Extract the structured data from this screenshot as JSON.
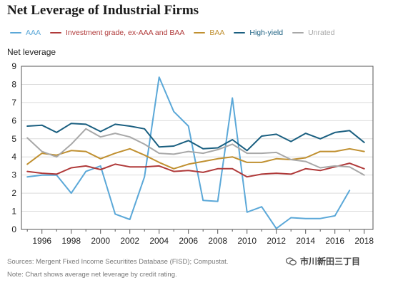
{
  "title": "Net Leverage of Industrial Firms",
  "footer": {
    "source": "Sources: Mergent Fixed Income Securitites Database (FISD); Compustat.",
    "note": "Note: Chart shows average net leverage by credit rating."
  },
  "watermark": {
    "text": "市川新田三丁目",
    "icon": "chat-bubbles-icon"
  },
  "chart_data": {
    "type": "line",
    "title": "Net Leverage of Industrial Firms",
    "ylabel": "Net leverage",
    "xlabel": "",
    "xlim": [
      1994.6,
      2018.6
    ],
    "ylim": [
      0,
      9
    ],
    "yticks": [
      0,
      1,
      2,
      3,
      4,
      5,
      6,
      7,
      8,
      9
    ],
    "xticks": [
      1996,
      1998,
      2000,
      2002,
      2004,
      2006,
      2008,
      2010,
      2012,
      2014,
      2016,
      2018
    ],
    "grid": "horizontal",
    "legend_position": "top",
    "x": [
      1995,
      1996,
      1997,
      1998,
      1999,
      2000,
      2001,
      2002,
      2003,
      2004,
      2005,
      2006,
      2007,
      2008,
      2009,
      2010,
      2011,
      2012,
      2013,
      2014,
      2015,
      2016,
      2017,
      2018
    ],
    "series": [
      {
        "name": "AAA",
        "color": "#5ba8d8",
        "values": [
          2.9,
          3.0,
          3.0,
          2.0,
          3.2,
          3.5,
          0.85,
          0.55,
          2.9,
          8.4,
          6.5,
          5.7,
          1.6,
          1.55,
          7.25,
          0.95,
          1.25,
          0.05,
          0.65,
          0.6,
          0.6,
          0.75,
          2.15,
          null
        ]
      },
      {
        "name": "Investment grade, ex-AAA and BAA",
        "color": "#b03a3a",
        "values": [
          3.2,
          3.1,
          3.05,
          3.4,
          3.5,
          3.3,
          3.6,
          3.45,
          3.45,
          3.5,
          3.2,
          3.25,
          3.15,
          3.35,
          3.35,
          2.9,
          3.05,
          3.1,
          3.05,
          3.35,
          3.25,
          3.45,
          3.65,
          3.35
        ]
      },
      {
        "name": "BAA",
        "color": "#c09030",
        "values": [
          3.6,
          4.2,
          4.1,
          4.35,
          4.3,
          3.9,
          4.2,
          4.45,
          4.1,
          3.7,
          3.35,
          3.6,
          3.75,
          3.9,
          4.0,
          3.7,
          3.7,
          3.9,
          3.85,
          3.95,
          4.3,
          4.3,
          4.45,
          4.3
        ]
      },
      {
        "name": "High-yield",
        "color": "#1a5f80",
        "values": [
          5.7,
          5.75,
          5.35,
          5.85,
          5.8,
          5.4,
          5.8,
          5.7,
          5.55,
          4.55,
          4.6,
          4.9,
          4.45,
          4.5,
          4.95,
          4.35,
          5.15,
          5.25,
          4.85,
          5.3,
          5.0,
          5.35,
          5.45,
          4.8
        ]
      },
      {
        "name": "Unrated",
        "color": "#a8a8a8",
        "values": [
          5.05,
          4.3,
          4.0,
          4.7,
          5.55,
          5.1,
          5.3,
          5.1,
          4.7,
          4.2,
          4.15,
          4.3,
          4.2,
          4.4,
          4.7,
          4.2,
          4.2,
          4.25,
          3.85,
          3.75,
          3.4,
          3.5,
          3.45,
          3.0
        ]
      }
    ]
  }
}
